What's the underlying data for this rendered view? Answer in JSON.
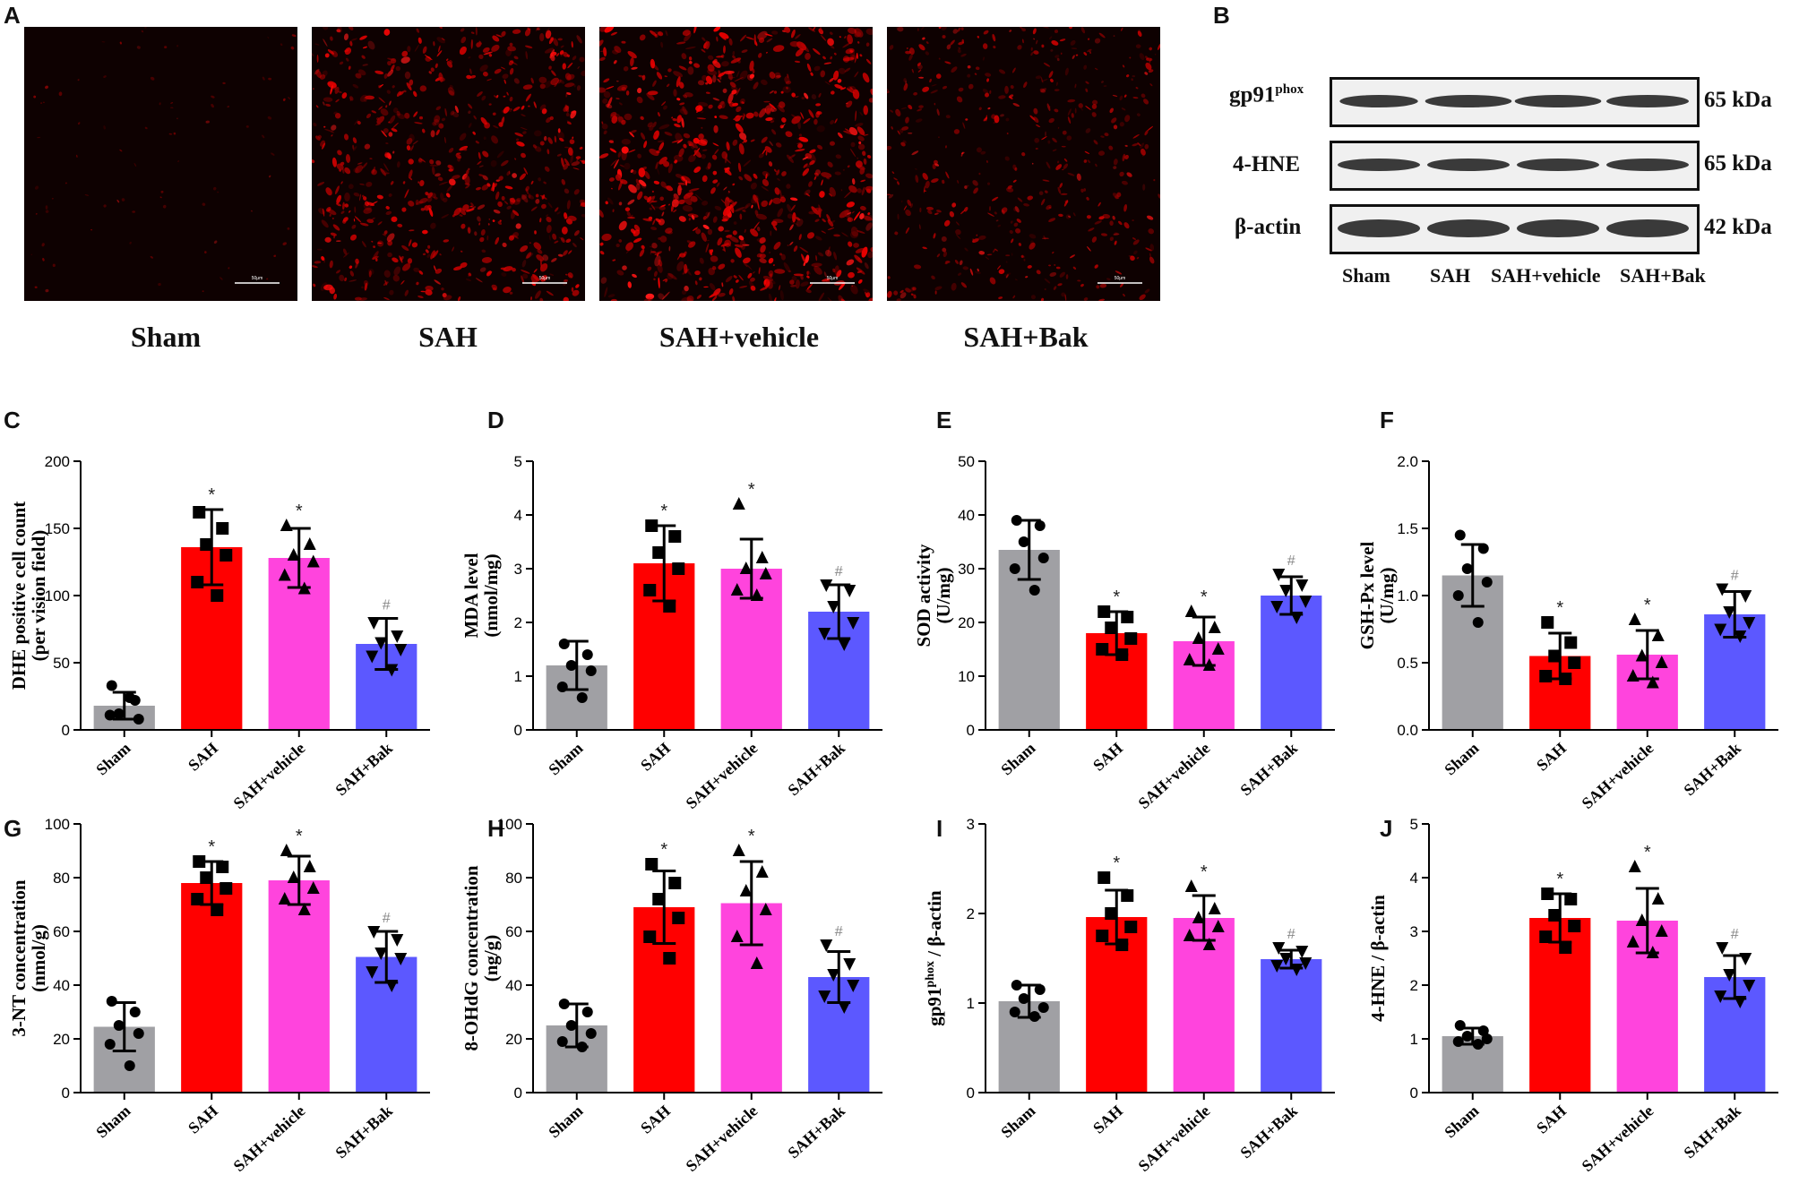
{
  "panels": {
    "A": "A",
    "B": "B",
    "C": "C",
    "D": "D",
    "E": "E",
    "F": "F",
    "G": "G",
    "H": "H",
    "I": "I",
    "J": "J"
  },
  "micrographs": {
    "labels": [
      "Sham",
      "SAH",
      "SAH+vehicle",
      "SAH+Bak"
    ],
    "scale_bar": "50μm",
    "signal_density": [
      0.05,
      0.75,
      0.9,
      0.5
    ]
  },
  "blot": {
    "rows": [
      {
        "label": "gp91",
        "sup": "phox",
        "kda": "65 kDa"
      },
      {
        "label": "4-HNE",
        "sup": "",
        "kda": "65 kDa"
      },
      {
        "label": "β-actin",
        "sup": "",
        "kda": "42 kDa"
      }
    ],
    "lanes": [
      "Sham",
      "SAH",
      "SAH+vehicle",
      "SAH+Bak"
    ]
  },
  "colors": {
    "Sham": "#a0a0a4",
    "SAH": "#ff0000",
    "SAH+vehicle": "#ff44dd",
    "SAH+Bak": "#5c58ff"
  },
  "chart_data": [
    {
      "id": "C",
      "type": "bar",
      "categories": [
        "Sham",
        "SAH",
        "SAH+vehicle",
        "SAH+Bak"
      ],
      "ylabel": "DHE positive cell count",
      "ylabel2": "(per vision field)",
      "ylabel_sup": "",
      "ylabel_tail": "",
      "ylim": [
        0,
        200
      ],
      "yticks": [
        "0",
        "50",
        "100",
        "150",
        "200"
      ],
      "means": [
        18,
        136,
        128,
        64
      ],
      "sd": [
        10,
        28,
        22,
        19
      ],
      "points": [
        [
          33,
          22,
          12,
          8,
          11,
          24
        ],
        [
          162,
          150,
          138,
          130,
          110,
          100
        ],
        [
          152,
          138,
          130,
          125,
          115,
          105
        ],
        [
          80,
          70,
          65,
          60,
          55,
          45
        ]
      ],
      "markers": [
        "circle",
        "square",
        "triangle",
        "invtriangle"
      ],
      "annotations": [
        "",
        "*",
        "*",
        "#"
      ]
    },
    {
      "id": "D",
      "type": "bar",
      "categories": [
        "Sham",
        "SAH",
        "SAH+vehicle",
        "SAH+Bak"
      ],
      "ylabel": "MDA level",
      "ylabel2": "(nmol/mg)",
      "ylabel_sup": "",
      "ylabel_tail": "",
      "ylim": [
        0,
        5
      ],
      "yticks": [
        "0",
        "1",
        "2",
        "3",
        "4",
        "5"
      ],
      "means": [
        1.2,
        3.1,
        3.0,
        2.2
      ],
      "sd": [
        0.45,
        0.7,
        0.55,
        0.5
      ],
      "points": [
        [
          1.6,
          1.4,
          1.2,
          1.1,
          0.8,
          0.6
        ],
        [
          3.8,
          3.6,
          3.3,
          3.0,
          2.6,
          2.3
        ],
        [
          4.2,
          3.2,
          3.0,
          2.9,
          2.6,
          2.5
        ],
        [
          2.7,
          2.6,
          2.3,
          2.0,
          1.8,
          1.6
        ]
      ],
      "markers": [
        "circle",
        "square",
        "triangle",
        "invtriangle"
      ],
      "annotations": [
        "",
        "*",
        "*",
        "#"
      ]
    },
    {
      "id": "E",
      "type": "bar",
      "categories": [
        "Sham",
        "SAH",
        "SAH+vehicle",
        "SAH+Bak"
      ],
      "ylabel": "SOD activity",
      "ylabel2": "(U/mg)",
      "ylabel_sup": "",
      "ylabel_tail": "",
      "ylim": [
        0,
        50
      ],
      "yticks": [
        "0",
        "10",
        "20",
        "30",
        "40",
        "50"
      ],
      "means": [
        33.5,
        18,
        16.5,
        25
      ],
      "sd": [
        5.5,
        4,
        4.5,
        3.5
      ],
      "points": [
        [
          39,
          38,
          35,
          32,
          30,
          26
        ],
        [
          22,
          21,
          19,
          17,
          15,
          14
        ],
        [
          22,
          19,
          17,
          15,
          13,
          12
        ],
        [
          29,
          27,
          26,
          24,
          23,
          21
        ]
      ],
      "markers": [
        "circle",
        "square",
        "triangle",
        "invtriangle"
      ],
      "annotations": [
        "",
        "*",
        "*",
        "#"
      ]
    },
    {
      "id": "F",
      "type": "bar",
      "categories": [
        "Sham",
        "SAH",
        "SAH+vehicle",
        "SAH+Bak"
      ],
      "ylabel": "GSH-Px level",
      "ylabel2": "(U/mg)",
      "ylabel_sup": "",
      "ylabel_tail": "",
      "ylim": [
        0,
        2.0
      ],
      "yticks": [
        "0.0",
        "0.5",
        "1.0",
        "1.5",
        "2.0"
      ],
      "means": [
        1.15,
        0.55,
        0.56,
        0.86
      ],
      "sd": [
        0.23,
        0.17,
        0.18,
        0.17
      ],
      "points": [
        [
          1.45,
          1.35,
          1.2,
          1.1,
          1.0,
          0.8
        ],
        [
          0.8,
          0.65,
          0.55,
          0.5,
          0.4,
          0.38
        ],
        [
          0.82,
          0.7,
          0.55,
          0.5,
          0.4,
          0.35
        ],
        [
          1.05,
          1.0,
          0.88,
          0.8,
          0.75,
          0.7
        ]
      ],
      "markers": [
        "circle",
        "square",
        "triangle",
        "invtriangle"
      ],
      "annotations": [
        "",
        "*",
        "*",
        "#"
      ]
    },
    {
      "id": "G",
      "type": "bar",
      "categories": [
        "Sham",
        "SAH",
        "SAH+vehicle",
        "SAH+Bak"
      ],
      "ylabel": "3-NT concentration",
      "ylabel2": "(nmol/g)",
      "ylabel_sup": "",
      "ylabel_tail": "",
      "ylim": [
        0,
        100
      ],
      "yticks": [
        "0",
        "20",
        "40",
        "60",
        "80",
        "100"
      ],
      "means": [
        24.5,
        78,
        79,
        50.5
      ],
      "sd": [
        9,
        8,
        9,
        9.5
      ],
      "points": [
        [
          34,
          30,
          25,
          22,
          18,
          10
        ],
        [
          86,
          84,
          80,
          76,
          72,
          68
        ],
        [
          90,
          84,
          80,
          76,
          72,
          68
        ],
        [
          60,
          57,
          52,
          50,
          45,
          40
        ]
      ],
      "markers": [
        "circle",
        "square",
        "triangle",
        "invtriangle"
      ],
      "annotations": [
        "",
        "*",
        "*",
        "#"
      ]
    },
    {
      "id": "H",
      "type": "bar",
      "categories": [
        "Sham",
        "SAH",
        "SAH+vehicle",
        "SAH+Bak"
      ],
      "ylabel": "8-OHdG concentration",
      "ylabel2": "(ng/g)",
      "ylabel_sup": "",
      "ylabel_tail": "",
      "ylim": [
        0,
        100
      ],
      "yticks": [
        "0",
        "20",
        "40",
        "60",
        "80",
        "100"
      ],
      "means": [
        25,
        69,
        70.5,
        43
      ],
      "sd": [
        8,
        13.5,
        15.5,
        9.5
      ],
      "points": [
        [
          33,
          30,
          25,
          22,
          19,
          17
        ],
        [
          85,
          78,
          72,
          65,
          58,
          50
        ],
        [
          90,
          82,
          75,
          68,
          58,
          48
        ],
        [
          55,
          48,
          44,
          40,
          36,
          32
        ]
      ],
      "markers": [
        "circle",
        "square",
        "triangle",
        "invtriangle"
      ],
      "annotations": [
        "",
        "*",
        "*",
        "#"
      ]
    },
    {
      "id": "I",
      "type": "bar",
      "categories": [
        "Sham",
        "SAH",
        "SAH+vehicle",
        "SAH+Bak"
      ],
      "ylabel": "gp91",
      "ylabel2": "",
      "ylabel_sup": "phox",
      "ylabel_tail": " / β-actin",
      "ylim": [
        0,
        3
      ],
      "yticks": [
        "0",
        "1",
        "2",
        "3"
      ],
      "means": [
        1.02,
        1.96,
        1.95,
        1.49
      ],
      "sd": [
        0.18,
        0.3,
        0.25,
        0.1
      ],
      "points": [
        [
          1.2,
          1.15,
          1.05,
          0.95,
          0.9,
          0.85
        ],
        [
          2.4,
          2.2,
          2.0,
          1.85,
          1.75,
          1.65
        ],
        [
          2.3,
          2.05,
          1.95,
          1.85,
          1.75,
          1.65
        ],
        [
          1.62,
          1.58,
          1.5,
          1.45,
          1.42,
          1.38
        ]
      ],
      "markers": [
        "circle",
        "square",
        "triangle",
        "invtriangle"
      ],
      "annotations": [
        "",
        "*",
        "*",
        "#"
      ]
    },
    {
      "id": "J",
      "type": "bar",
      "categories": [
        "Sham",
        "SAH",
        "SAH+vehicle",
        "SAH+Bak"
      ],
      "ylabel": "4-HNE / β-actin",
      "ylabel2": "",
      "ylabel_sup": "",
      "ylabel_tail": "",
      "ylim": [
        0,
        5
      ],
      "yticks": [
        "0",
        "1",
        "2",
        "3",
        "4",
        "5"
      ],
      "means": [
        1.05,
        3.25,
        3.2,
        2.15
      ],
      "sd": [
        0.15,
        0.45,
        0.6,
        0.4
      ],
      "points": [
        [
          1.25,
          1.15,
          1.05,
          1.0,
          0.95,
          0.9
        ],
        [
          3.7,
          3.6,
          3.3,
          3.1,
          2.9,
          2.7
        ],
        [
          4.2,
          3.6,
          3.2,
          3.0,
          2.8,
          2.6
        ],
        [
          2.7,
          2.5,
          2.2,
          2.0,
          1.8,
          1.7
        ]
      ],
      "markers": [
        "circle",
        "square",
        "triangle",
        "invtriangle"
      ],
      "annotations": [
        "",
        "*",
        "*",
        "#"
      ]
    }
  ]
}
